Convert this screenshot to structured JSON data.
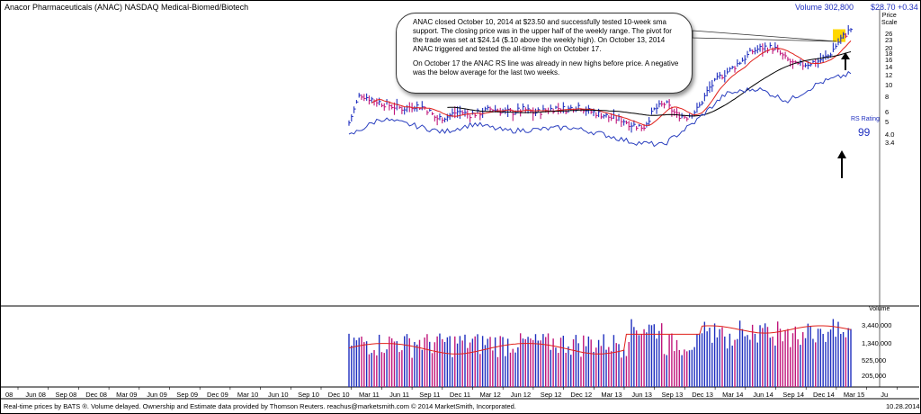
{
  "header": {
    "title": "Anacor Pharmaceuticals (ANAC) NASDAQ Medical-Biomed/Biotech",
    "volume": "Volume 302,800",
    "price_change": "$28.70 +0.34"
  },
  "price_scale_label": [
    "Price",
    "Scale"
  ],
  "price_ticks": [
    "26",
    "23",
    "20",
    "18",
    "16",
    "14",
    "12",
    "10",
    "8",
    "6",
    "5",
    "4.0",
    "3.4"
  ],
  "volume_label": "Volume",
  "volume_ticks": [
    "3,440,000",
    "1,340,000",
    "525,000",
    "205,000"
  ],
  "x_ticks": [
    "08",
    "Jun 08",
    "Sep 08",
    "Dec 08",
    "Mar 09",
    "Jun 09",
    "Sep 09",
    "Dec 09",
    "Mar 10",
    "Jun 10",
    "Sep 10",
    "Dec 10",
    "Mar 11",
    "Jun 11",
    "Sep 11",
    "Dec 11",
    "Mar 12",
    "Jun 12",
    "Sep 12",
    "Dec 12",
    "Mar 13",
    "Jun 13",
    "Sep 13",
    "Dec 13",
    "Mar 14",
    "Jun 14",
    "Sep 14",
    "Dec 14",
    "Mar 15",
    "Ju"
  ],
  "callout": {
    "paragraph1": "ANAC closed October 10, 2014 at $23.50 and successfully tested 10-week sma support. The closing price was in the upper half of the weekly range. The pivot for the trade was set at $24.14 ($.10 above the weekly high).  On October 13, 2014 ANAC triggered and tested the all-time high on October 17.",
    "paragraph2": "On October 17 the ANAC RS line was already in new highs before price. A negative was the below average for the last two weeks."
  },
  "rs_rating_label": "RS Rating",
  "rs_rating_value": "99",
  "footer": "Real-time prices by BATS ®. Volume delayed. Ownership and Estimate data provided by Thomson Reuters. reachus@marketsmith.com    © 2014 MarketSmith, Incorporated.",
  "footer_date": "10.28.2014",
  "colors": {
    "up_bar": "#1f2fbf",
    "down_bar": "#c0157a",
    "ma_short": "#e0201a",
    "ma_long": "#000000",
    "rs_line": "#2a3fbf",
    "highlight": "#ffd700",
    "volume_ma": "#e0201a"
  },
  "chart_data": {
    "type": "line",
    "scale": "log",
    "x_range": [
      "Mar 08",
      "Jun 15"
    ],
    "ylim": [
      3.0,
      30
    ],
    "series": [
      {
        "name": "",
        "kind": "weekly price bars",
        "x": [
          "Dec 10",
          "Jan 11",
          "Feb 11",
          "Mar 11",
          "Apr 11",
          "May 11",
          "Jun 11",
          "Jul 11",
          "Aug 11",
          "Sep 11",
          "Oct 11",
          "Nov 11",
          "Dec 11",
          "Jan 12",
          "Feb 12",
          "Mar 12",
          "Apr 12",
          "May 12",
          "Jun 12",
          "Jul 12",
          "Aug 12",
          "Sep 12",
          "Oct 12",
          "Nov 12",
          "Dec 12",
          "Jan 13",
          "Feb 13",
          "Mar 13",
          "Apr 13",
          "May 13",
          "Jun 13",
          "Jul 13",
          "Aug 13",
          "Sep 13",
          "Oct 13",
          "Nov 13",
          "Dec 13",
          "Jan 14",
          "Feb 14",
          "Mar 14",
          "Apr 14",
          "May 14",
          "Jun 14",
          "Jul 14",
          "Aug 14",
          "Sep 14",
          "Oct 14"
        ],
        "values": [
          5.0,
          8.5,
          7.8,
          7.2,
          6.8,
          6.5,
          6.9,
          6.6,
          5.4,
          5.6,
          6.2,
          5.8,
          6.0,
          6.5,
          6.2,
          6.1,
          6.4,
          6.0,
          6.3,
          6.6,
          6.4,
          6.9,
          6.2,
          5.9,
          5.5,
          5.3,
          4.8,
          4.6,
          6.4,
          7.2,
          5.8,
          5.6,
          6.5,
          9.5,
          11.8,
          13.5,
          16.0,
          19.0,
          20.5,
          20.0,
          16.5,
          14.5,
          15.0,
          15.8,
          17.5,
          23.5,
          28.7
        ]
      },
      {
        "name": "",
        "kind": "RS line",
        "x": [
          "Dec 10",
          "Mar 11",
          "Jun 11",
          "Sep 11",
          "Dec 11",
          "Mar 12",
          "Jun 12",
          "Sep 12",
          "Dec 12",
          "Mar 13",
          "Jun 13",
          "Sep 13",
          "Dec 13",
          "Mar 14",
          "Jun 14",
          "Sep 14",
          "Oct 14"
        ],
        "values": [
          3.9,
          5.4,
          4.8,
          4.2,
          4.9,
          4.3,
          4.4,
          4.6,
          4.1,
          3.5,
          3.3,
          5.0,
          8.5,
          9.5,
          7.5,
          10.5,
          12.5
        ]
      }
    ],
    "volume": {
      "ticks": [
        205000,
        525000,
        1340000,
        3440000
      ]
    },
    "annotations": [
      "ANAC callout",
      "RS Rating 99"
    ]
  }
}
